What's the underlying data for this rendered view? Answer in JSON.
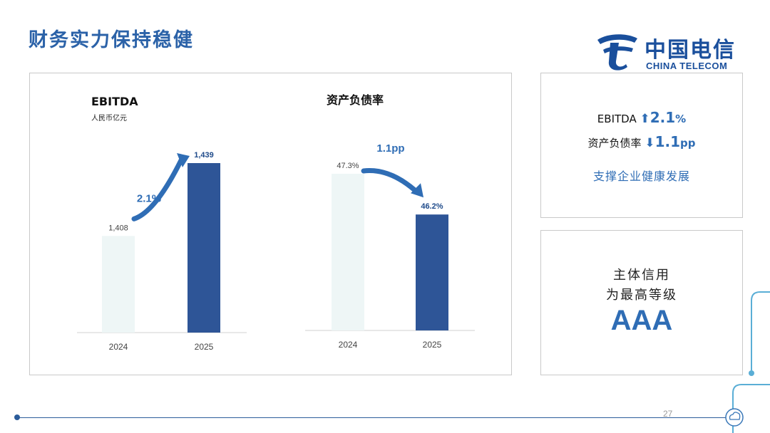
{
  "title": "财务实力保持稳健",
  "logo": {
    "cn": "中国电信",
    "en": "CHINA TELECOM",
    "brand_color": "#1a4f9c"
  },
  "colors": {
    "accent": "#2f6db5",
    "bar_2025": "#2e5597",
    "bar_2024": "#eef6f6"
  },
  "chart_data": [
    {
      "type": "bar",
      "title": "EBITDA",
      "subtitle": "人民币亿元",
      "categories": [
        "2024",
        "2025"
      ],
      "values": [
        1408,
        1439
      ],
      "value_labels": [
        "1,408",
        "1,439"
      ],
      "change_label": "2.1%",
      "change_direction": "up"
    },
    {
      "type": "bar",
      "title": "资产负债率",
      "categories": [
        "2024",
        "2025"
      ],
      "values": [
        47.3,
        46.2
      ],
      "value_labels": [
        "47.3%",
        "46.2%"
      ],
      "change_label": "1.1pp",
      "change_direction": "down"
    }
  ],
  "kpi": {
    "ebitda_label": "EBITDA",
    "ebitda_arrow_icon": "arrow-up-icon",
    "ebitda_value": "2.1",
    "ebitda_unit": "%",
    "debt_label": "资产负债率",
    "debt_arrow_icon": "arrow-down-icon",
    "debt_value": "1.1",
    "debt_unit": "pp",
    "note": "支撑企业健康发展"
  },
  "credit": {
    "line1": "主体信用",
    "line2": "为最高等级",
    "rating": "AAA"
  },
  "page_number": "27"
}
